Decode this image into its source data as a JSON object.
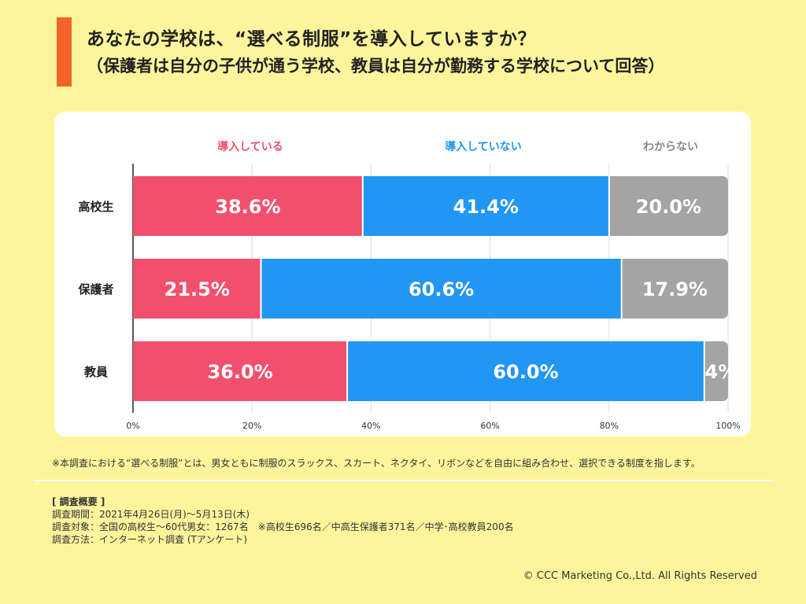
{
  "header": {
    "title": "あなたの学校は、“選べる制服”を導入していますか？",
    "subtitle": "（保護者は自分の子供が通う学校、教員は自分が勤務する学校について回答）"
  },
  "chart_data": {
    "type": "bar",
    "orientation": "horizontal",
    "stacked": true,
    "categories": [
      "高校生",
      "保護者",
      "教員"
    ],
    "series": [
      {
        "name": "導入している",
        "color": "#f0506e",
        "values": [
          38.6,
          21.5,
          36.0
        ],
        "labels": [
          "38.6%",
          "21.5%",
          "36.0%"
        ]
      },
      {
        "name": "導入していない",
        "color": "#2196f3",
        "values": [
          41.4,
          60.6,
          60.0
        ],
        "labels": [
          "41.4%",
          "60.6%",
          "60.0%"
        ]
      },
      {
        "name": "わからない",
        "color": "#a4a4a4",
        "values": [
          20.0,
          17.9,
          4.0
        ],
        "labels": [
          "20.0%",
          "17.9%",
          "4%"
        ]
      }
    ],
    "legend_colors": [
      "#f0506e",
      "#2196f3",
      "#888888"
    ],
    "xlim": [
      0,
      100
    ],
    "xticks": [
      0,
      20,
      40,
      60,
      80,
      100
    ],
    "xtick_labels": [
      "0%",
      "20%",
      "40%",
      "60%",
      "80%",
      "100%"
    ],
    "grid": true,
    "legend_placement": "top"
  },
  "footnote": "※本調査における“選べる制服”とは、男女ともに制服のスラックス、スカート、ネクタイ、リボンなどを自由に組み合わせ、選択できる制度を指します。",
  "survey": {
    "heading": "[ 調査概要 ]",
    "period": "調査期間：2021年4月26日(月)〜5月13日(木)",
    "target": "調査対象：全国の高校生〜60代男女：1267名　※高校生696名／中高生保護者371名／中学･高校教員200名",
    "method": "調査方法：インターネット調査 (Tアンケート)"
  },
  "copyright": "© CCC Marketing Co.,Ltd. All Rights Reserved"
}
